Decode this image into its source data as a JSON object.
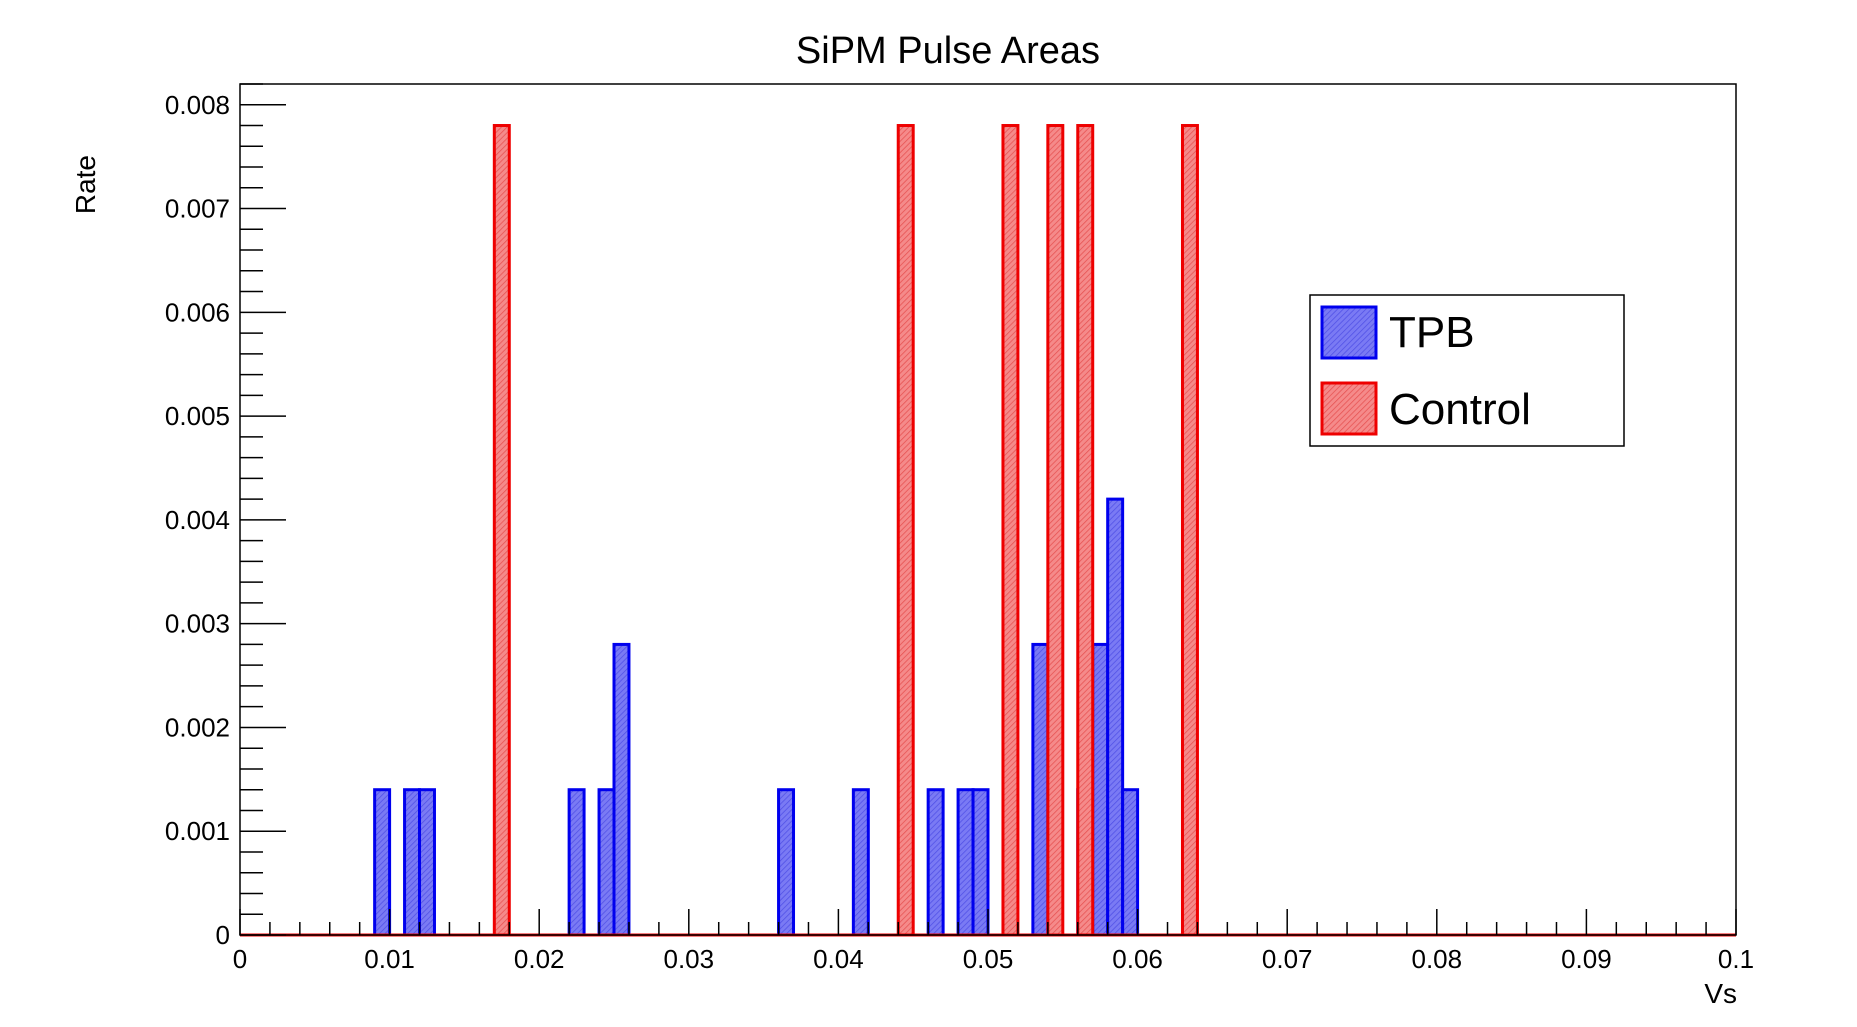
{
  "chart_data": {
    "type": "bar",
    "title": "SiPM Pulse Areas",
    "xlabel": "Vs",
    "ylabel": "Rate",
    "xlim": [
      0,
      0.1
    ],
    "ylim": [
      0,
      0.0082
    ],
    "bin_width": 0.001,
    "x_ticks": [
      0,
      0.01,
      0.02,
      0.03,
      0.04,
      0.05,
      0.06,
      0.07,
      0.08,
      0.09,
      0.1
    ],
    "x_tick_labels": [
      "0",
      "0.01",
      "0.02",
      "0.03",
      "0.04",
      "0.05",
      "0.06",
      "0.07",
      "0.08",
      "0.09",
      "0.1"
    ],
    "y_ticks": [
      0,
      0.001,
      0.002,
      0.003,
      0.004,
      0.005,
      0.006,
      0.007,
      0.008
    ],
    "y_tick_labels": [
      "0",
      "0.001",
      "0.002",
      "0.003",
      "0.004",
      "0.005",
      "0.006",
      "0.007",
      "0.008"
    ],
    "grid": false,
    "legend_position": "top-right",
    "series": [
      {
        "name": "TPB",
        "color": "#0000ee",
        "fill": "#6b6bf2",
        "bins": [
          {
            "x0": 0.009,
            "x1": 0.01,
            "y": 0.0014
          },
          {
            "x0": 0.011,
            "x1": 0.012,
            "y": 0.0014
          },
          {
            "x0": 0.012,
            "x1": 0.013,
            "y": 0.0014
          },
          {
            "x0": 0.022,
            "x1": 0.023,
            "y": 0.0014
          },
          {
            "x0": 0.024,
            "x1": 0.025,
            "y": 0.0014
          },
          {
            "x0": 0.025,
            "x1": 0.026,
            "y": 0.0028
          },
          {
            "x0": 0.036,
            "x1": 0.037,
            "y": 0.0014
          },
          {
            "x0": 0.041,
            "x1": 0.042,
            "y": 0.0014
          },
          {
            "x0": 0.046,
            "x1": 0.047,
            "y": 0.0014
          },
          {
            "x0": 0.048,
            "x1": 0.049,
            "y": 0.0014
          },
          {
            "x0": 0.049,
            "x1": 0.05,
            "y": 0.0014
          },
          {
            "x0": 0.053,
            "x1": 0.054,
            "y": 0.0028
          },
          {
            "x0": 0.056,
            "x1": 0.057,
            "y": 0.0014
          },
          {
            "x0": 0.057,
            "x1": 0.058,
            "y": 0.0028
          },
          {
            "x0": 0.058,
            "x1": 0.059,
            "y": 0.0042
          },
          {
            "x0": 0.059,
            "x1": 0.06,
            "y": 0.0014
          }
        ]
      },
      {
        "name": "Control",
        "color": "#ee0000",
        "fill": "#f27a7a",
        "bins": [
          {
            "x0": 0.017,
            "x1": 0.018,
            "y": 0.0078
          },
          {
            "x0": 0.044,
            "x1": 0.045,
            "y": 0.0078
          },
          {
            "x0": 0.051,
            "x1": 0.052,
            "y": 0.0078
          },
          {
            "x0": 0.054,
            "x1": 0.055,
            "y": 0.0078
          },
          {
            "x0": 0.056,
            "x1": 0.057,
            "y": 0.0078
          },
          {
            "x0": 0.063,
            "x1": 0.064,
            "y": 0.0078
          }
        ]
      }
    ]
  }
}
